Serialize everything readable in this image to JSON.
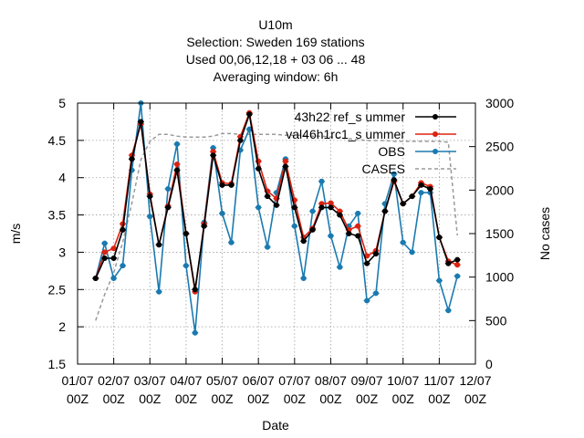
{
  "chart_data": {
    "type": "line",
    "title_lines": [
      "U10m",
      "Selection: Sweden    169 stations",
      "Used  00,06,12,18  + 03 06 ... 48",
      "Averaging window:  6h"
    ],
    "xlabel": "Date",
    "ylabel": "m/s",
    "y2label": "No cases",
    "ylim": [
      1.5,
      5
    ],
    "y2lim": [
      0,
      3000
    ],
    "yticks": [
      "1.5",
      "2",
      "2.5",
      "3",
      "3.5",
      "4",
      "4.5",
      "5"
    ],
    "y2ticks": [
      "0",
      "500",
      "1000",
      "1500",
      "2000",
      "2500",
      "3000"
    ],
    "xlim": [
      0,
      11
    ],
    "xticks": [
      {
        "date": "01/07",
        "hour": "00Z"
      },
      {
        "date": "02/07",
        "hour": "00Z"
      },
      {
        "date": "03/07",
        "hour": "00Z"
      },
      {
        "date": "04/07",
        "hour": "00Z"
      },
      {
        "date": "05/07",
        "hour": "00Z"
      },
      {
        "date": "06/07",
        "hour": "00Z"
      },
      {
        "date": "07/07",
        "hour": "00Z"
      },
      {
        "date": "08/07",
        "hour": "00Z"
      },
      {
        "date": "09/07",
        "hour": "00Z"
      },
      {
        "date": "10/07",
        "hour": "00Z"
      },
      {
        "date": "11/07",
        "hour": "00Z"
      },
      {
        "date": "12/07",
        "hour": "00Z"
      }
    ],
    "grid": true,
    "legend_position": "top-right",
    "series": [
      {
        "name": "43h22_ref_summer",
        "legend_label": "43h22 ref_s ummer",
        "color": "#000000",
        "axis": "left",
        "x": [
          0.5,
          0.75,
          1.0,
          1.25,
          1.5,
          1.75,
          2.0,
          2.25,
          2.5,
          2.75,
          3.0,
          3.25,
          3.5,
          3.75,
          4.0,
          4.25,
          4.5,
          4.75,
          5.0,
          5.25,
          5.5,
          5.75,
          6.0,
          6.25,
          6.5,
          6.75,
          7.0,
          7.25,
          7.5,
          7.75,
          8.0,
          8.25,
          8.5,
          8.75,
          9.0,
          9.25,
          9.5,
          9.75,
          10.0,
          10.25,
          10.5
        ],
        "values": [
          2.65,
          2.92,
          2.92,
          3.3,
          4.25,
          4.75,
          3.75,
          3.1,
          3.6,
          4.1,
          3.25,
          2.5,
          3.35,
          4.3,
          3.9,
          3.9,
          4.5,
          4.85,
          4.12,
          3.75,
          3.63,
          4.15,
          3.6,
          3.15,
          3.3,
          3.6,
          3.6,
          3.5,
          3.25,
          3.22,
          2.85,
          2.98,
          3.55,
          3.97,
          3.65,
          3.75,
          3.9,
          3.85,
          3.2,
          2.85,
          2.9
        ]
      },
      {
        "name": "val46h1rc1_summer",
        "legend_label": "val46h1rc1_s ummer",
        "color": "#dd2211",
        "axis": "left",
        "x": [
          0.5,
          0.75,
          1.0,
          1.25,
          1.5,
          1.75,
          2.0,
          2.25,
          2.5,
          2.75,
          3.0,
          3.25,
          3.5,
          3.75,
          4.0,
          4.25,
          4.5,
          4.75,
          5.0,
          5.25,
          5.5,
          5.75,
          6.0,
          6.25,
          6.5,
          6.75,
          7.0,
          7.25,
          7.5,
          7.75,
          8.0,
          8.25,
          8.5,
          8.75,
          9.0,
          9.25,
          9.5,
          9.75,
          10.0,
          10.25,
          10.5
        ],
        "values": [
          2.65,
          3.0,
          3.05,
          3.38,
          4.3,
          4.72,
          3.78,
          3.1,
          3.62,
          4.18,
          3.25,
          2.47,
          3.38,
          4.35,
          3.93,
          3.92,
          4.55,
          4.87,
          4.22,
          3.82,
          3.72,
          4.22,
          3.7,
          3.2,
          3.32,
          3.65,
          3.66,
          3.55,
          3.3,
          3.35,
          2.95,
          3.02,
          3.55,
          3.95,
          3.65,
          3.75,
          3.93,
          3.88,
          3.2,
          2.88,
          2.83
        ]
      },
      {
        "name": "OBS",
        "legend_label": "OBS",
        "color": "#1a7ab0",
        "axis": "left",
        "x": [
          0.5,
          0.75,
          1.0,
          1.25,
          1.5,
          1.75,
          2.0,
          2.25,
          2.5,
          2.75,
          3.0,
          3.25,
          3.5,
          3.75,
          4.0,
          4.25,
          4.5,
          4.75,
          5.0,
          5.25,
          5.5,
          5.75,
          6.0,
          6.25,
          6.5,
          6.75,
          7.0,
          7.25,
          7.5,
          7.75,
          8.0,
          8.25,
          8.5,
          8.75,
          9.0,
          9.25,
          9.5,
          9.75,
          10.0,
          10.25,
          10.5
        ],
        "values": [
          2.65,
          3.12,
          2.65,
          2.82,
          4.1,
          5.0,
          3.48,
          2.47,
          3.85,
          4.45,
          2.82,
          1.92,
          3.4,
          4.4,
          3.52,
          3.13,
          4.37,
          4.65,
          3.6,
          3.07,
          3.8,
          4.25,
          3.35,
          2.65,
          3.55,
          3.95,
          3.22,
          2.8,
          3.35,
          3.52,
          2.35,
          2.45,
          3.65,
          4.05,
          3.13,
          3.0,
          3.8,
          3.8,
          2.62,
          2.22,
          2.68
        ]
      },
      {
        "name": "CASES",
        "legend_label": "CASES",
        "color": "#999999",
        "axis": "right",
        "dashed": true,
        "x": [
          0.5,
          0.75,
          1.0,
          1.25,
          1.5,
          1.75,
          2.0,
          2.25,
          2.5,
          2.75,
          3.0,
          3.25,
          3.5,
          3.75,
          4.0,
          4.25,
          4.5,
          4.75,
          5.0,
          5.25,
          5.5,
          5.75,
          6.0,
          6.25,
          6.5,
          6.75,
          7.0,
          7.25,
          7.5,
          7.75,
          8.0,
          8.25,
          8.5,
          8.75,
          9.0,
          9.25,
          9.5,
          9.75,
          10.0,
          10.25,
          10.5
        ],
        "values": [
          500,
          800,
          1050,
          1400,
          1850,
          2350,
          2560,
          2640,
          2640,
          2620,
          2610,
          2610,
          2610,
          2620,
          2650,
          2650,
          2640,
          2640,
          2640,
          2640,
          2640,
          2630,
          2630,
          2630,
          2620,
          2620,
          2610,
          2600,
          2590,
          2580,
          2570,
          2570,
          2570,
          2560,
          2560,
          2560,
          2560,
          2560,
          2560,
          2550,
          1480
        ]
      }
    ]
  }
}
